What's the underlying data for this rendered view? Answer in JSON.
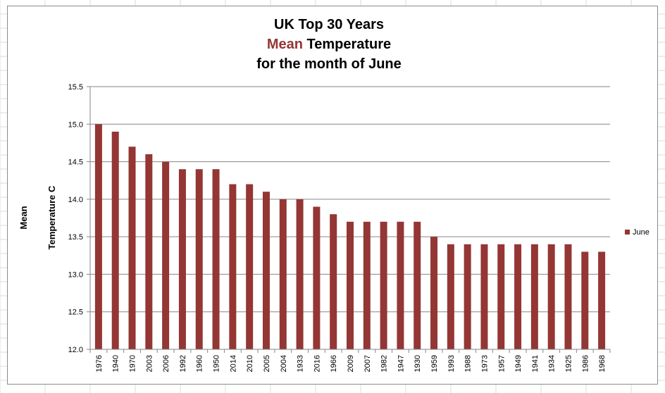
{
  "chart_data": {
    "type": "bar",
    "title_lines": [
      {
        "parts": [
          {
            "text": "UK Top 30 Years",
            "accent": false
          }
        ]
      },
      {
        "parts": [
          {
            "text": "Mean",
            "accent": true
          },
          {
            "text": " Temperature",
            "accent": false
          }
        ]
      },
      {
        "parts": [
          {
            "text": "for the month of June",
            "accent": false
          }
        ]
      }
    ],
    "ylabel_lines": [
      "Mean",
      "Temperature C"
    ],
    "xlabel": "",
    "categories": [
      "1976",
      "1940",
      "1970",
      "2003",
      "2006",
      "1992",
      "1960",
      "1950",
      "2014",
      "2010",
      "2005",
      "2004",
      "1933",
      "2016",
      "1966",
      "2009",
      "2007",
      "1982",
      "1947",
      "1930",
      "1959",
      "1993",
      "1988",
      "1973",
      "1957",
      "1949",
      "1941",
      "1934",
      "1925",
      "1986",
      "1968"
    ],
    "series": [
      {
        "name": "June",
        "values": [
          15.0,
          14.9,
          14.7,
          14.6,
          14.5,
          14.4,
          14.4,
          14.4,
          14.2,
          14.2,
          14.1,
          14.0,
          14.0,
          13.9,
          13.8,
          13.7,
          13.7,
          13.7,
          13.7,
          13.7,
          13.5,
          13.4,
          13.4,
          13.4,
          13.4,
          13.4,
          13.4,
          13.4,
          13.4,
          13.3,
          13.3
        ]
      }
    ],
    "yticks": [
      "12.0",
      "12.5",
      "13.0",
      "13.5",
      "14.0",
      "14.5",
      "15.0",
      "15.5"
    ],
    "ylim": [
      12.0,
      15.5
    ],
    "grid": true,
    "legend_position": "right",
    "colors": {
      "bar": "#943634",
      "accent_title": "#943634",
      "gridline": "#868686"
    }
  }
}
